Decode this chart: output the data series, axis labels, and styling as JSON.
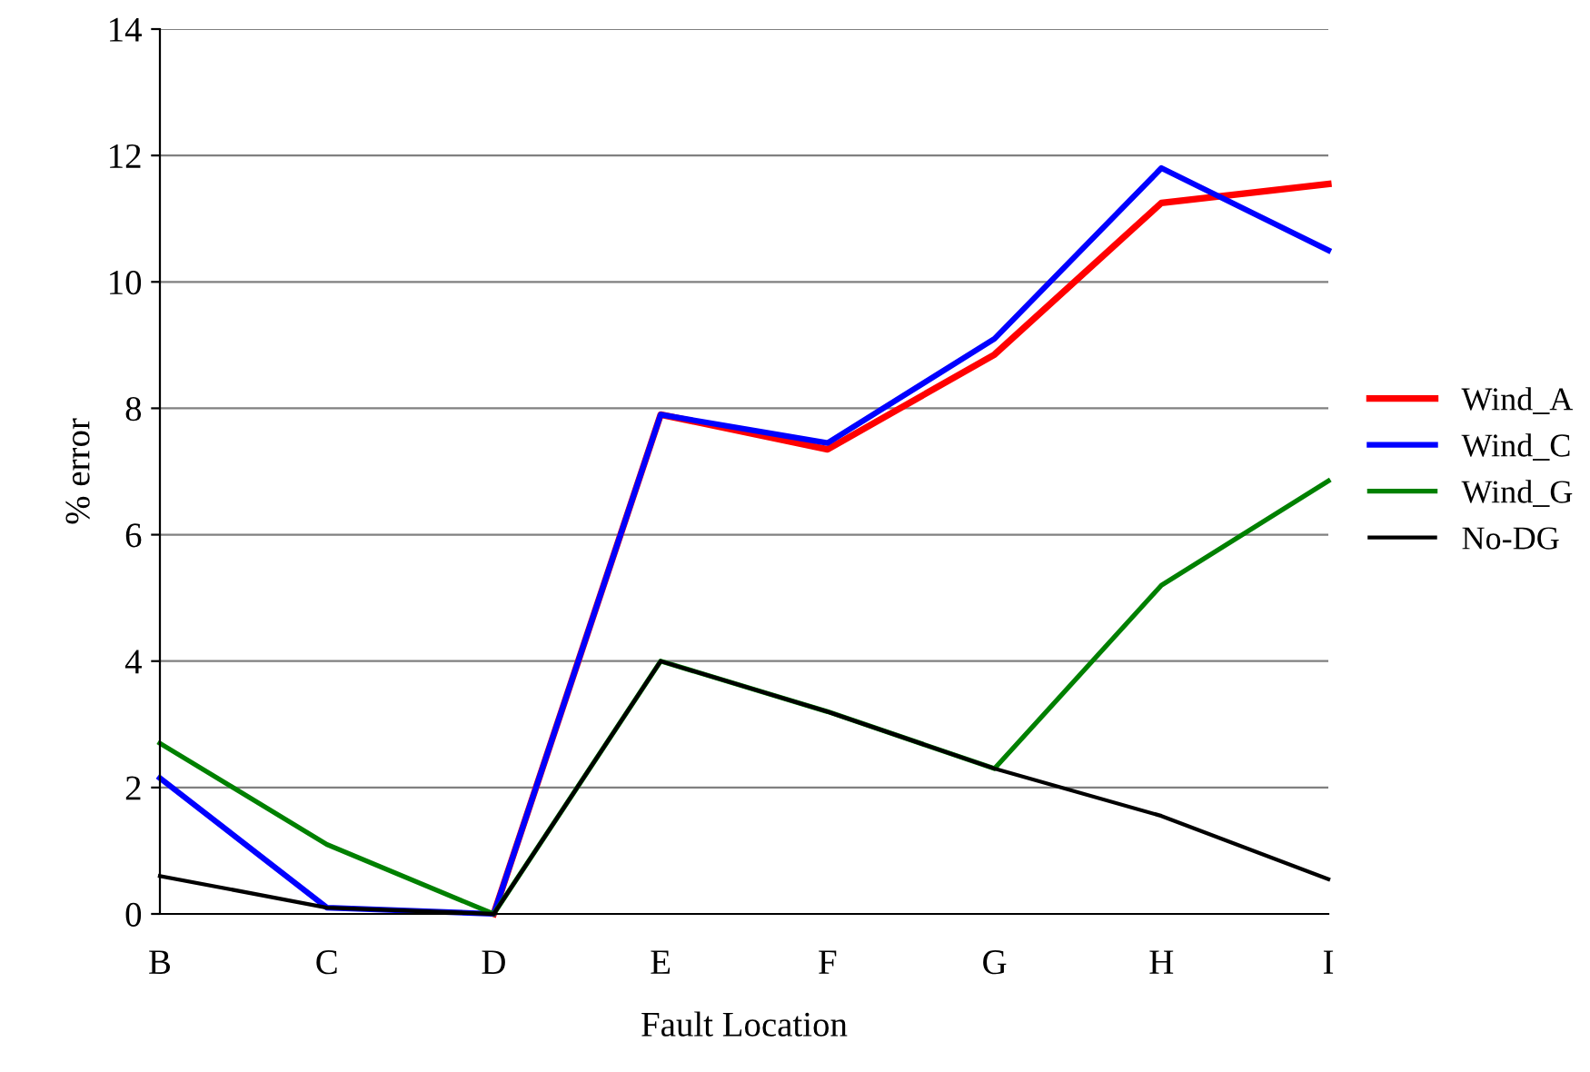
{
  "chart_data": {
    "type": "line",
    "xlabel": "Fault Location",
    "ylabel": "% error",
    "categories": [
      "B",
      "C",
      "D",
      "E",
      "F",
      "G",
      "H",
      "I"
    ],
    "series": [
      {
        "name": "Wind_A",
        "color": "#ff0000",
        "values": [
          null,
          null,
          0,
          7.9,
          7.35,
          8.85,
          11.25,
          11.55
        ]
      },
      {
        "name": "Wind_C",
        "color": "#0000ff",
        "values": [
          2.15,
          0.1,
          0,
          7.9,
          7.45,
          9.1,
          11.8,
          10.5
        ]
      },
      {
        "name": "Wind_G",
        "color": "#008000",
        "values": [
          2.7,
          1.1,
          0,
          4.0,
          3.2,
          2.3,
          5.2,
          6.85
        ]
      },
      {
        "name": "No-DG",
        "color": "#000000",
        "values": [
          0.6,
          0.1,
          0,
          4.0,
          3.2,
          2.3,
          1.55,
          0.55
        ]
      }
    ],
    "ylim": [
      0,
      14
    ],
    "yticks": [
      0,
      2,
      4,
      6,
      8,
      10,
      12,
      14
    ],
    "grid": "y",
    "legend": "right"
  }
}
